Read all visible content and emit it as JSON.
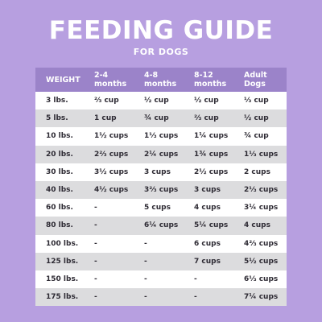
{
  "header": {
    "title": "FEEDING GUIDE",
    "subtitle": "FOR DOGS"
  },
  "table": {
    "columns": [
      {
        "line1": "WEIGHT",
        "line2": ""
      },
      {
        "line1": "2-4",
        "line2": "months"
      },
      {
        "line1": "4-8",
        "line2": "months"
      },
      {
        "line1": "8-12",
        "line2": "months"
      },
      {
        "line1": "Adult",
        "line2": "Dogs"
      }
    ],
    "rows": [
      [
        "3 lbs.",
        "⅔ cup",
        "½ cup",
        "½ cup",
        "⅓ cup"
      ],
      [
        "5 lbs.",
        "1 cup",
        "¾ cup",
        "⅔ cup",
        "½ cup"
      ],
      [
        "10 lbs.",
        "1½ cups",
        "1⅓ cups",
        "1¼ cups",
        "¾ cup"
      ],
      [
        "20 lbs.",
        "2⅔ cups",
        "2¼ cups",
        "1¾ cups",
        "1⅓ cups"
      ],
      [
        "30 lbs.",
        "3½ cups",
        "3 cups",
        "2½ cups",
        "2 cups"
      ],
      [
        "40 lbs.",
        "4½ cups",
        "3⅔ cups",
        "3 cups",
        "2⅓ cups"
      ],
      [
        "60 lbs.",
        "-",
        "5 cups",
        "4 cups",
        "3¼ cups"
      ],
      [
        "80 lbs.",
        "-",
        "6¼ cups",
        "5¼ cups",
        "4 cups"
      ],
      [
        "100 lbs.",
        "-",
        "-",
        "6 cups",
        "4⅔ cups"
      ],
      [
        "125 lbs.",
        "-",
        "-",
        "7 cups",
        "5½ cups"
      ],
      [
        "150 lbs.",
        "-",
        "-",
        "-",
        "6⅓ cups"
      ],
      [
        "175 lbs.",
        "-",
        "-",
        "-",
        "7¼ cups"
      ]
    ]
  },
  "colors": {
    "background": "#b79fe0",
    "header_row": "#9b83c9",
    "row_light": "#ffffff",
    "row_gray": "#dcdcde",
    "text": "#2d2a33"
  }
}
